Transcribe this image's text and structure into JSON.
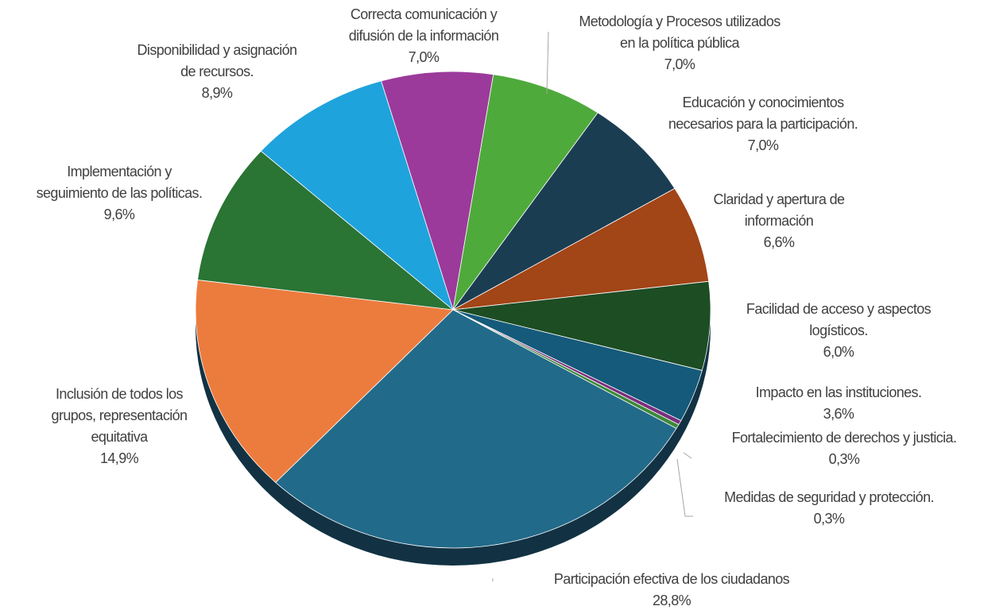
{
  "chart_data": {
    "type": "pie",
    "categories": [
      "Metodología y Procesos utilizados\nen la política pública",
      "Educación y conocimientos\nnecesarios para la participación.",
      "Claridad y apertura de\ninformación",
      "Facilidad de acceso y aspectos\nlogísticos.",
      "Impacto en las instituciones.",
      "Fortalecimiento de derechos y justicia.",
      "Medidas de seguridad y protección.",
      "Participación efectiva de los ciudadanos",
      "Inclusión de todos los\ngrupos, representación\nequitativa",
      "Implementación y\nseguimiento de las políticas.",
      "Disponibilidad y asignación\nde recursos.",
      "Correcta comunicación y\ndifusión de la información"
    ],
    "values": [
      7.0,
      7.0,
      6.6,
      6.0,
      3.6,
      0.3,
      0.3,
      28.8,
      14.9,
      9.6,
      8.9,
      7.0
    ],
    "value_labels": [
      "7,0%",
      "7,0%",
      "6,6%",
      "6,0%",
      "3,6%",
      "0,3%",
      "0,3%",
      "28,8%",
      "14,9%",
      "9,6%",
      "8,9%",
      "7,0%"
    ],
    "colors": [
      "#4faa3c",
      "#1b3d52",
      "#a24517",
      "#1d4d23",
      "#155a7a",
      "#7b2e7d",
      "#3d8a3a",
      "#226a8a",
      "#ec7c3e",
      "#2a7434",
      "#1fa3dc",
      "#9b3a9a"
    ]
  }
}
